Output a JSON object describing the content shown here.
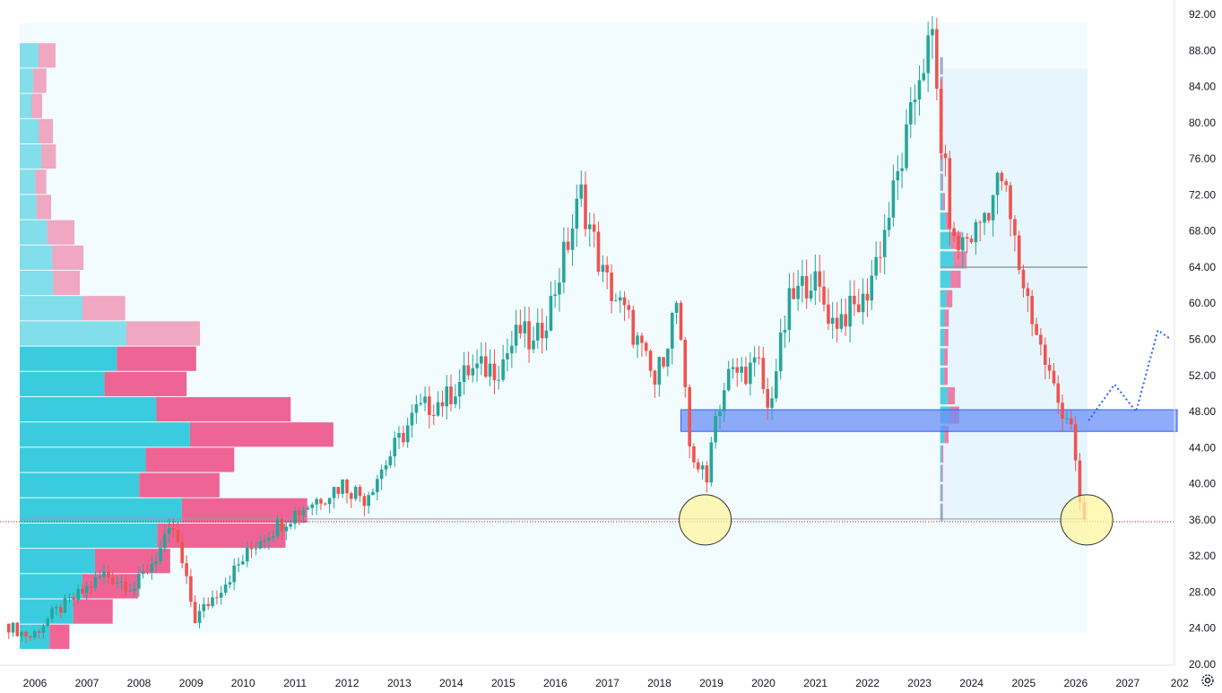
{
  "chart_data": {
    "type": "candlestick",
    "x_axis": {
      "type": "date",
      "range": [
        "2005-07-01",
        "2027-12-31"
      ],
      "tick_labels": [
        {
          "date": "2006-01-01",
          "label": "2006"
        },
        {
          "date": "2007-01-01",
          "label": "2007"
        },
        {
          "date": "2008-01-01",
          "label": "2008"
        },
        {
          "date": "2009-01-01",
          "label": "2009"
        },
        {
          "date": "2010-01-01",
          "label": "2010"
        },
        {
          "date": "2011-01-01",
          "label": "2011"
        },
        {
          "date": "2012-01-01",
          "label": "2012"
        },
        {
          "date": "2013-01-01",
          "label": "2013"
        },
        {
          "date": "2014-01-01",
          "label": "2014"
        },
        {
          "date": "2015-01-01",
          "label": "2015"
        },
        {
          "date": "2016-01-01",
          "label": "2016"
        },
        {
          "date": "2017-01-01",
          "label": "2017"
        },
        {
          "date": "2018-01-01",
          "label": "2018"
        },
        {
          "date": "2019-01-01",
          "label": "2019"
        },
        {
          "date": "2020-01-01",
          "label": "2020"
        },
        {
          "date": "2021-01-01",
          "label": "2021"
        },
        {
          "date": "2022-01-01",
          "label": "2022"
        },
        {
          "date": "2023-01-01",
          "label": "2023"
        },
        {
          "date": "2024-01-01",
          "label": "2024"
        },
        {
          "date": "2025-01-01",
          "label": "2025"
        },
        {
          "date": "2026-01-01",
          "label": "2026"
        },
        {
          "date": "2027-01-01",
          "label": "2027"
        },
        {
          "date": "2028-01-01",
          "label": "202"
        }
      ]
    },
    "y_axis": {
      "side": "right",
      "range": [
        20,
        92
      ],
      "tick_labels": [
        "20.00",
        "24.00",
        "28.00",
        "32.00",
        "36.00",
        "40.00",
        "44.00",
        "48.00",
        "52.00",
        "56.00",
        "60.00",
        "64.00",
        "68.00",
        "72.00",
        "76.00",
        "80.00",
        "84.00",
        "88.00",
        "92.00"
      ]
    },
    "colors": {
      "up": "#26a69a",
      "down": "#ef5350",
      "vp_up": "#26c6da",
      "vp_down": "#ec407a",
      "range_bg": "#e1f5fe",
      "zone": "#6b8ff7",
      "highlight": "#fff59d",
      "projection": "#2962ff"
    },
    "price_path": [
      [
        "2005-07-01",
        24.5
      ],
      [
        "2006-01-01",
        23.0
      ],
      [
        "2006-06-01",
        25.5
      ],
      [
        "2007-01-01",
        28.0
      ],
      [
        "2007-06-01",
        30.0
      ],
      [
        "2008-01-01",
        28.5
      ],
      [
        "2008-06-01",
        32.0
      ],
      [
        "2008-10-01",
        35.0
      ],
      [
        "2009-03-01",
        25.0
      ],
      [
        "2009-08-01",
        28.0
      ],
      [
        "2010-01-01",
        31.0
      ],
      [
        "2010-06-01",
        34.0
      ],
      [
        "2011-01-01",
        36.5
      ],
      [
        "2011-06-01",
        38.0
      ],
      [
        "2012-01-01",
        40.0
      ],
      [
        "2012-06-01",
        38.5
      ],
      [
        "2013-01-01",
        44.0
      ],
      [
        "2013-06-01",
        48.0
      ],
      [
        "2014-01-01",
        49.5
      ],
      [
        "2014-06-01",
        52.5
      ],
      [
        "2015-01-01",
        53.0
      ],
      [
        "2015-06-01",
        57.0
      ],
      [
        "2015-09-01",
        55.0
      ],
      [
        "2016-01-01",
        60.0
      ],
      [
        "2016-08-01",
        72.0
      ],
      [
        "2017-01-01",
        63.0
      ],
      [
        "2017-07-01",
        58.0
      ],
      [
        "2018-01-01",
        51.0
      ],
      [
        "2018-06-01",
        60.0
      ],
      [
        "2018-09-01",
        44.0
      ],
      [
        "2019-01-01",
        40.0
      ],
      [
        "2019-02-01",
        46.0
      ],
      [
        "2019-06-01",
        52.0
      ],
      [
        "2020-01-01",
        53.0
      ],
      [
        "2020-03-01",
        48.0
      ],
      [
        "2020-08-01",
        60.0
      ],
      [
        "2021-01-01",
        63.0
      ],
      [
        "2021-06-01",
        58.0
      ],
      [
        "2022-01-01",
        60.0
      ],
      [
        "2022-06-01",
        68.0
      ],
      [
        "2022-12-01",
        80.0
      ],
      [
        "2023-02-01",
        86.0
      ],
      [
        "2023-05-01",
        89.0
      ],
      [
        "2023-07-01",
        78.0
      ],
      [
        "2023-10-01",
        66.0
      ],
      [
        "2024-03-01",
        68.0
      ],
      [
        "2024-09-01",
        74.0
      ],
      [
        "2025-01-01",
        64.0
      ],
      [
        "2025-06-01",
        55.0
      ],
      [
        "2025-10-01",
        49.0
      ],
      [
        "2026-01-01",
        47.0
      ],
      [
        "2026-03-01",
        37.0
      ],
      [
        "2026-04-01",
        36.0
      ]
    ],
    "volume_profile_fixed_range": {
      "date_start": "2023-06-01",
      "date_end": "2026-04-01",
      "price_low": 35.8,
      "price_high": 86.0,
      "point_of_control": 64.0
    },
    "support_zone": {
      "date_start": "2018-06-01",
      "date_end": "2027-12-31",
      "price_low": 45.8,
      "price_high": 48.2
    },
    "current_price_line": 35.8,
    "highlight_circles": [
      {
        "date": "2018-12-01",
        "price": 36.0
      },
      {
        "date": "2026-04-01",
        "price": 36.0
      }
    ],
    "projection_path": [
      [
        "2026-04-01",
        47.0
      ],
      [
        "2026-10-01",
        51.0
      ],
      [
        "2027-03-01",
        48.0
      ],
      [
        "2027-08-01",
        57.0
      ],
      [
        "2027-11-01",
        56.0
      ]
    ]
  }
}
